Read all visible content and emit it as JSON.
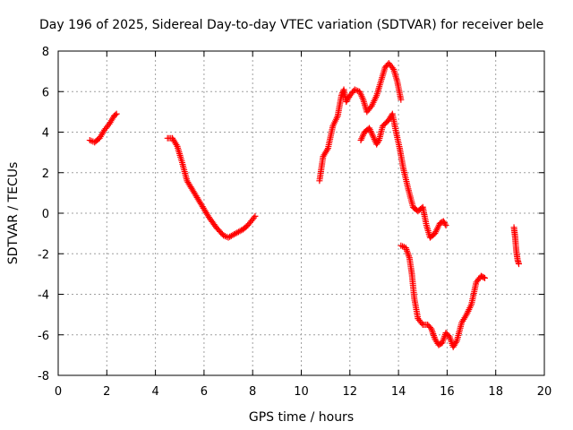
{
  "chart_data": {
    "type": "scatter",
    "title": "Day 196 of 2025, Sidereal Day-to-day VTEC variation (SDTVAR) for receiver bele",
    "xlabel": "GPS time / hours",
    "ylabel": "SDTVAR / TECUs",
    "xlim": [
      0,
      20
    ],
    "ylim": [
      -8,
      8
    ],
    "xticks": [
      0,
      2,
      4,
      6,
      8,
      10,
      12,
      14,
      16,
      18,
      20
    ],
    "yticks": [
      -8,
      -6,
      -4,
      -2,
      0,
      2,
      4,
      6,
      8
    ],
    "grid": true,
    "marker": "+",
    "color": "#ff0000",
    "series": [
      {
        "points": [
          [
            1.3,
            3.6
          ],
          [
            1.5,
            3.5
          ],
          [
            1.7,
            3.7
          ],
          [
            1.9,
            4.1
          ],
          [
            2.1,
            4.4
          ],
          [
            2.3,
            4.8
          ],
          [
            2.4,
            4.9
          ]
        ]
      },
      {
        "points": [
          [
            4.5,
            3.7
          ],
          [
            4.7,
            3.7
          ],
          [
            4.9,
            3.3
          ],
          [
            5.1,
            2.5
          ],
          [
            5.3,
            1.6
          ],
          [
            5.6,
            1.0
          ],
          [
            5.9,
            0.4
          ],
          [
            6.2,
            -0.2
          ],
          [
            6.5,
            -0.7
          ],
          [
            6.8,
            -1.1
          ],
          [
            7.0,
            -1.2
          ],
          [
            7.3,
            -1.0
          ],
          [
            7.6,
            -0.8
          ],
          [
            7.8,
            -0.6
          ],
          [
            8.0,
            -0.3
          ],
          [
            8.1,
            -0.15
          ]
        ]
      },
      {
        "points": [
          [
            10.75,
            1.6
          ],
          [
            10.9,
            2.8
          ],
          [
            11.1,
            3.2
          ],
          [
            11.3,
            4.3
          ],
          [
            11.5,
            4.8
          ],
          [
            11.65,
            5.8
          ],
          [
            11.75,
            6.1
          ],
          [
            11.85,
            5.5
          ],
          [
            12.0,
            5.8
          ],
          [
            12.2,
            6.1
          ],
          [
            12.4,
            6.0
          ],
          [
            12.55,
            5.6
          ],
          [
            12.7,
            5.0
          ],
          [
            12.9,
            5.3
          ],
          [
            13.1,
            5.8
          ],
          [
            13.3,
            6.6
          ],
          [
            13.45,
            7.2
          ],
          [
            13.6,
            7.4
          ],
          [
            13.8,
            7.1
          ],
          [
            13.95,
            6.5
          ],
          [
            14.1,
            5.6
          ]
        ]
      },
      {
        "points": [
          [
            12.45,
            3.6
          ],
          [
            12.6,
            4.0
          ],
          [
            12.8,
            4.2
          ],
          [
            12.95,
            3.8
          ],
          [
            13.1,
            3.4
          ],
          [
            13.2,
            3.6
          ],
          [
            13.35,
            4.3
          ],
          [
            13.6,
            4.6
          ],
          [
            13.75,
            4.9
          ],
          [
            13.9,
            4.0
          ],
          [
            14.05,
            3.2
          ],
          [
            14.2,
            2.2
          ],
          [
            14.4,
            1.2
          ],
          [
            14.6,
            0.3
          ],
          [
            14.8,
            0.1
          ],
          [
            15.0,
            0.3
          ],
          [
            15.15,
            -0.6
          ],
          [
            15.3,
            -1.2
          ],
          [
            15.5,
            -1.0
          ],
          [
            15.7,
            -0.5
          ],
          [
            15.85,
            -0.4
          ],
          [
            15.95,
            -0.6
          ]
        ]
      },
      {
        "points": [
          [
            14.1,
            -1.6
          ],
          [
            14.3,
            -1.7
          ],
          [
            14.45,
            -2.2
          ],
          [
            14.55,
            -3.0
          ],
          [
            14.65,
            -4.2
          ],
          [
            14.8,
            -5.2
          ],
          [
            15.0,
            -5.5
          ],
          [
            15.2,
            -5.5
          ],
          [
            15.35,
            -5.7
          ],
          [
            15.5,
            -6.2
          ],
          [
            15.65,
            -6.5
          ],
          [
            15.8,
            -6.4
          ],
          [
            15.95,
            -5.9
          ],
          [
            16.1,
            -6.1
          ],
          [
            16.25,
            -6.6
          ],
          [
            16.4,
            -6.3
          ],
          [
            16.6,
            -5.4
          ],
          [
            16.8,
            -5.0
          ],
          [
            17.0,
            -4.5
          ],
          [
            17.2,
            -3.4
          ],
          [
            17.4,
            -3.1
          ],
          [
            17.55,
            -3.2
          ]
        ]
      },
      {
        "points": [
          [
            18.75,
            -0.7
          ],
          [
            18.8,
            -1.2
          ],
          [
            18.85,
            -1.9
          ],
          [
            18.9,
            -2.3
          ],
          [
            18.95,
            -2.5
          ]
        ]
      }
    ]
  }
}
